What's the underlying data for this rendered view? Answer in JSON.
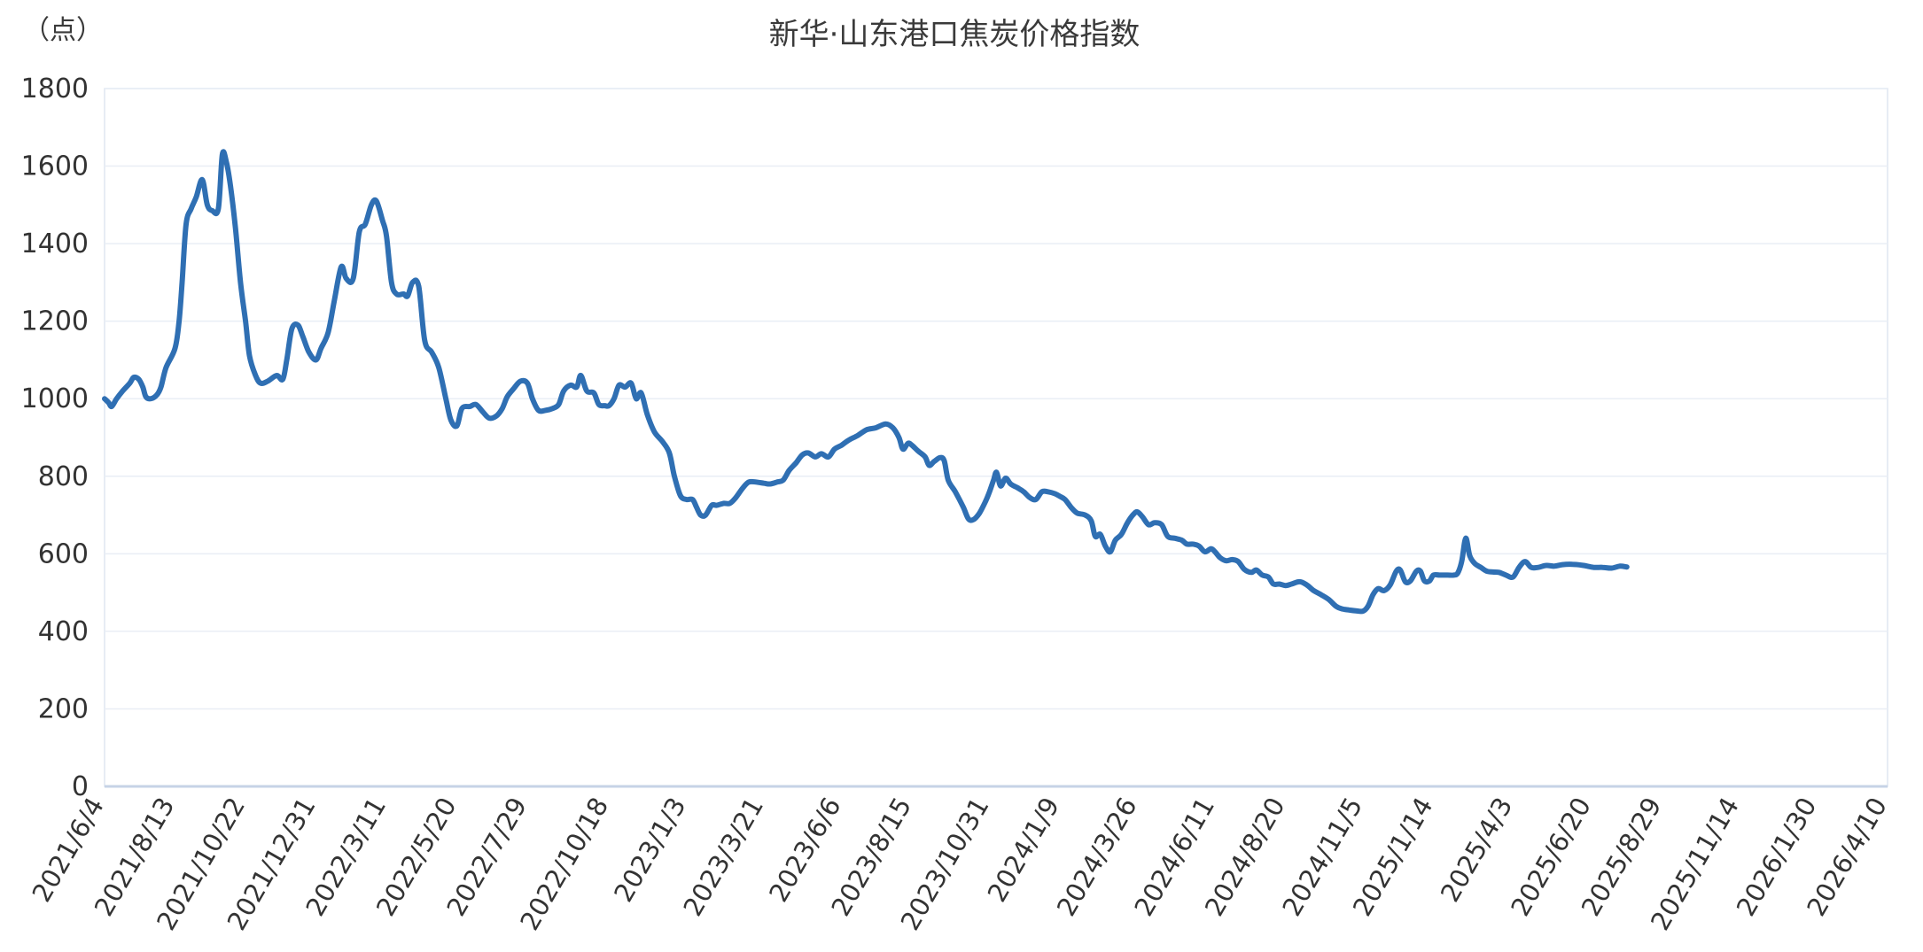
{
  "chart_data": {
    "type": "line",
    "title": "新华·山东港口焦炭价格指数",
    "ylabel": "（点）",
    "ylim": [
      0,
      1800
    ],
    "yticks": [
      0,
      200,
      400,
      600,
      800,
      1000,
      1200,
      1400,
      1600,
      1800
    ],
    "xtick_labels": [
      "2021/6/4",
      "2021/8/13",
      "2021/10/22",
      "2021/12/31",
      "2022/3/11",
      "2022/5/20",
      "2022/7/29",
      "2022/10/18",
      "2023/1/3",
      "2023/3/21",
      "2023/6/6",
      "2023/8/15",
      "2023/10/31",
      "2024/1/9",
      "2024/3/26",
      "2024/6/11",
      "2024/8/20",
      "2024/11/5",
      "2025/1/14",
      "2025/4/3",
      "2025/6/20",
      "2025/8/29",
      "2025/11/14",
      "2026/1/30",
      "2026/4/10"
    ],
    "grid": true,
    "legend": "none",
    "color": "#2f6fb3",
    "series": [
      {
        "name": "",
        "points": [
          [
            "2021/6/4",
            1000
          ],
          [
            "2021/6/8",
            990
          ],
          [
            "2021/6/11",
            980
          ],
          [
            "2021/6/16",
            1000
          ],
          [
            "2021/6/22",
            1020
          ],
          [
            "2021/6/29",
            1040
          ],
          [
            "2021/7/3",
            1055
          ],
          [
            "2021/7/8",
            1050
          ],
          [
            "2021/7/12",
            1030
          ],
          [
            "2021/7/15",
            1005
          ],
          [
            "2021/7/20",
            1000
          ],
          [
            "2021/7/26",
            1010
          ],
          [
            "2021/7/30",
            1030
          ],
          [
            "2021/8/4",
            1080
          ],
          [
            "2021/8/13",
            1130
          ],
          [
            "2021/8/17",
            1200
          ],
          [
            "2021/8/20",
            1300
          ],
          [
            "2021/8/24",
            1450
          ],
          [
            "2021/8/29",
            1490
          ],
          [
            "2021/9/3",
            1520
          ],
          [
            "2021/9/9",
            1565
          ],
          [
            "2021/9/14",
            1500
          ],
          [
            "2021/9/19",
            1485
          ],
          [
            "2021/9/25",
            1490
          ],
          [
            "2021/9/29",
            1630
          ],
          [
            "2021/10/3",
            1610
          ],
          [
            "2021/10/7",
            1550
          ],
          [
            "2021/10/12",
            1440
          ],
          [
            "2021/10/17",
            1300
          ],
          [
            "2021/10/22",
            1200
          ],
          [
            "2021/10/26",
            1110
          ],
          [
            "2021/11/1",
            1060
          ],
          [
            "2021/11/6",
            1040
          ],
          [
            "2021/11/13",
            1045
          ],
          [
            "2021/11/22",
            1060
          ],
          [
            "2021/11/28",
            1050
          ],
          [
            "2021/12/2",
            1100
          ],
          [
            "2021/12/7",
            1180
          ],
          [
            "2021/12/13",
            1190
          ],
          [
            "2021/12/18",
            1160
          ],
          [
            "2021/12/24",
            1120
          ],
          [
            "2021/12/31",
            1100
          ],
          [
            "2022/1/5",
            1130
          ],
          [
            "2022/1/12",
            1170
          ],
          [
            "2022/1/18",
            1250
          ],
          [
            "2022/1/25",
            1340
          ],
          [
            "2022/1/30",
            1310
          ],
          [
            "2022/2/6",
            1310
          ],
          [
            "2022/2/12",
            1430
          ],
          [
            "2022/2/18",
            1450
          ],
          [
            "2022/2/24",
            1500
          ],
          [
            "2022/3/1",
            1510
          ],
          [
            "2022/3/7",
            1460
          ],
          [
            "2022/3/11",
            1420
          ],
          [
            "2022/3/16",
            1300
          ],
          [
            "2022/3/21",
            1270
          ],
          [
            "2022/3/28",
            1270
          ],
          [
            "2022/4/1",
            1265
          ],
          [
            "2022/4/6",
            1300
          ],
          [
            "2022/4/12",
            1290
          ],
          [
            "2022/4/18",
            1150
          ],
          [
            "2022/4/25",
            1120
          ],
          [
            "2022/5/2",
            1080
          ],
          [
            "2022/5/9",
            1000
          ],
          [
            "2022/5/14",
            945
          ],
          [
            "2022/5/20",
            930
          ],
          [
            "2022/5/25",
            975
          ],
          [
            "2022/6/2",
            980
          ],
          [
            "2022/6/8",
            985
          ],
          [
            "2022/6/15",
            965
          ],
          [
            "2022/6/21",
            950
          ],
          [
            "2022/6/28",
            955
          ],
          [
            "2022/7/4",
            975
          ],
          [
            "2022/7/9",
            1005
          ],
          [
            "2022/7/15",
            1025
          ],
          [
            "2022/7/22",
            1045
          ],
          [
            "2022/7/29",
            1040
          ],
          [
            "2022/8/3",
            1000
          ],
          [
            "2022/8/9",
            970
          ],
          [
            "2022/8/16",
            970
          ],
          [
            "2022/8/23",
            975
          ],
          [
            "2022/8/29",
            985
          ],
          [
            "2022/9/3",
            1020
          ],
          [
            "2022/9/10",
            1035
          ],
          [
            "2022/9/16",
            1030
          ],
          [
            "2022/9/20",
            1060
          ],
          [
            "2022/9/26",
            1020
          ],
          [
            "2022/10/3",
            1015
          ],
          [
            "2022/10/8",
            985
          ],
          [
            "2022/10/14",
            982
          ],
          [
            "2022/10/18",
            982
          ],
          [
            "2022/10/23",
            1000
          ],
          [
            "2022/10/28",
            1035
          ],
          [
            "2022/11/3",
            1030
          ],
          [
            "2022/11/9",
            1040
          ],
          [
            "2022/11/14",
            1000
          ],
          [
            "2022/11/19",
            1015
          ],
          [
            "2022/11/25",
            960
          ],
          [
            "2022/12/2",
            915
          ],
          [
            "2022/12/10",
            890
          ],
          [
            "2022/12/17",
            860
          ],
          [
            "2022/12/22",
            800
          ],
          [
            "2022/12/28",
            750
          ],
          [
            "2023/1/3",
            740
          ],
          [
            "2023/1/9",
            740
          ],
          [
            "2023/1/13",
            720
          ],
          [
            "2023/1/17",
            700
          ],
          [
            "2023/1/22",
            700
          ],
          [
            "2023/1/28",
            725
          ],
          [
            "2023/2/2",
            725
          ],
          [
            "2023/2/9",
            730
          ],
          [
            "2023/2/15",
            730
          ],
          [
            "2023/2/21",
            745
          ],
          [
            "2023/2/28",
            770
          ],
          [
            "2023/3/6",
            785
          ],
          [
            "2023/3/13",
            785
          ],
          [
            "2023/3/21",
            782
          ],
          [
            "2023/3/27",
            780
          ],
          [
            "2023/4/3",
            785
          ],
          [
            "2023/4/9",
            790
          ],
          [
            "2023/4/15",
            815
          ],
          [
            "2023/4/22",
            835
          ],
          [
            "2023/4/28",
            855
          ],
          [
            "2023/5/4",
            860
          ],
          [
            "2023/5/11",
            850
          ],
          [
            "2023/5/17",
            858
          ],
          [
            "2023/5/24",
            850
          ],
          [
            "2023/5/30",
            870
          ],
          [
            "2023/6/6",
            880
          ],
          [
            "2023/6/13",
            893
          ],
          [
            "2023/6/22",
            905
          ],
          [
            "2023/7/1",
            920
          ],
          [
            "2023/7/10",
            925
          ],
          [
            "2023/7/20",
            935
          ],
          [
            "2023/7/27",
            925
          ],
          [
            "2023/8/2",
            900
          ],
          [
            "2023/8/6",
            870
          ],
          [
            "2023/8/11",
            885
          ],
          [
            "2023/8/15",
            880
          ],
          [
            "2023/8/21",
            865
          ],
          [
            "2023/8/28",
            850
          ],
          [
            "2023/9/1",
            828
          ],
          [
            "2023/9/6",
            838
          ],
          [
            "2023/9/12",
            848
          ],
          [
            "2023/9/16",
            840
          ],
          [
            "2023/9/20",
            790
          ],
          [
            "2023/9/27",
            760
          ],
          [
            "2023/10/5",
            720
          ],
          [
            "2023/10/10",
            690
          ],
          [
            "2023/10/15",
            688
          ],
          [
            "2023/10/21",
            705
          ],
          [
            "2023/10/27",
            735
          ],
          [
            "2023/10/31",
            760
          ],
          [
            "2023/11/4",
            790
          ],
          [
            "2023/11/7",
            810
          ],
          [
            "2023/11/11",
            775
          ],
          [
            "2023/11/16",
            795
          ],
          [
            "2023/11/21",
            780
          ],
          [
            "2023/11/28",
            770
          ],
          [
            "2023/12/4",
            760
          ],
          [
            "2023/12/10",
            745
          ],
          [
            "2023/12/16",
            740
          ],
          [
            "2023/12/22",
            760
          ],
          [
            "2023/12/28",
            760
          ],
          [
            "2024/1/4",
            755
          ],
          [
            "2024/1/9",
            748
          ],
          [
            "2024/1/14",
            740
          ],
          [
            "2024/1/20",
            720
          ],
          [
            "2024/1/26",
            705
          ],
          [
            "2024/2/3",
            700
          ],
          [
            "2024/2/9",
            685
          ],
          [
            "2024/2/13",
            645
          ],
          [
            "2024/2/18",
            650
          ],
          [
            "2024/2/23",
            620
          ],
          [
            "2024/2/28",
            605
          ],
          [
            "2024/3/4",
            635
          ],
          [
            "2024/3/10",
            650
          ],
          [
            "2024/3/16",
            680
          ],
          [
            "2024/3/22",
            702
          ],
          [
            "2024/3/26",
            708
          ],
          [
            "2024/3/31",
            695
          ],
          [
            "2024/4/6",
            675
          ],
          [
            "2024/4/12",
            680
          ],
          [
            "2024/4/19",
            675
          ],
          [
            "2024/4/25",
            645
          ],
          [
            "2024/5/2",
            640
          ],
          [
            "2024/5/9",
            635
          ],
          [
            "2024/5/14",
            625
          ],
          [
            "2024/5/20",
            625
          ],
          [
            "2024/5/26",
            620
          ],
          [
            "2024/6/1",
            605
          ],
          [
            "2024/6/7",
            613
          ],
          [
            "2024/6/11",
            605
          ],
          [
            "2024/6/16",
            590
          ],
          [
            "2024/6/22",
            582
          ],
          [
            "2024/6/28",
            585
          ],
          [
            "2024/7/4",
            580
          ],
          [
            "2024/7/10",
            560
          ],
          [
            "2024/7/17",
            552
          ],
          [
            "2024/7/22",
            558
          ],
          [
            "2024/7/28",
            545
          ],
          [
            "2024/8/3",
            540
          ],
          [
            "2024/8/8",
            522
          ],
          [
            "2024/8/14",
            522
          ],
          [
            "2024/8/20",
            518
          ],
          [
            "2024/8/26",
            522
          ],
          [
            "2024/9/3",
            528
          ],
          [
            "2024/9/10",
            520
          ],
          [
            "2024/9/17",
            505
          ],
          [
            "2024/9/24",
            495
          ],
          [
            "2024/10/2",
            482
          ],
          [
            "2024/10/9",
            465
          ],
          [
            "2024/10/15",
            458
          ],
          [
            "2024/10/22",
            455
          ],
          [
            "2024/10/29",
            453
          ],
          [
            "2024/11/5",
            452
          ],
          [
            "2024/11/10",
            465
          ],
          [
            "2024/11/15",
            495
          ],
          [
            "2024/11/20",
            510
          ],
          [
            "2024/11/26",
            505
          ],
          [
            "2024/12/2",
            520
          ],
          [
            "2024/12/8",
            555
          ],
          [
            "2024/12/12",
            558
          ],
          [
            "2024/12/17",
            528
          ],
          [
            "2024/12/22",
            530
          ],
          [
            "2024/12/28",
            555
          ],
          [
            "2025/1/1",
            555
          ],
          [
            "2025/1/5",
            530
          ],
          [
            "2025/1/10",
            530
          ],
          [
            "2025/1/14",
            545
          ],
          [
            "2025/1/20",
            545
          ],
          [
            "2025/1/28",
            545
          ],
          [
            "2025/2/3",
            545
          ],
          [
            "2025/2/7",
            550
          ],
          [
            "2025/2/11",
            580
          ],
          [
            "2025/2/15",
            640
          ],
          [
            "2025/2/19",
            595
          ],
          [
            "2025/2/24",
            575
          ],
          [
            "2025/3/2",
            565
          ],
          [
            "2025/3/8",
            555
          ],
          [
            "2025/3/14",
            553
          ],
          [
            "2025/3/20",
            552
          ],
          [
            "2025/3/27",
            545
          ],
          [
            "2025/4/3",
            540
          ],
          [
            "2025/4/9",
            565
          ],
          [
            "2025/4/15",
            580
          ],
          [
            "2025/4/21",
            565
          ],
          [
            "2025/4/28",
            565
          ],
          [
            "2025/5/6",
            570
          ],
          [
            "2025/5/14",
            568
          ],
          [
            "2025/5/22",
            572
          ],
          [
            "2025/6/1",
            573
          ],
          [
            "2025/6/12",
            570
          ],
          [
            "2025/6/22",
            565
          ],
          [
            "2025/7/1",
            565
          ],
          [
            "2025/7/10",
            563
          ],
          [
            "2025/7/18",
            568
          ],
          [
            "2025/7/25",
            566
          ]
        ]
      }
    ]
  }
}
